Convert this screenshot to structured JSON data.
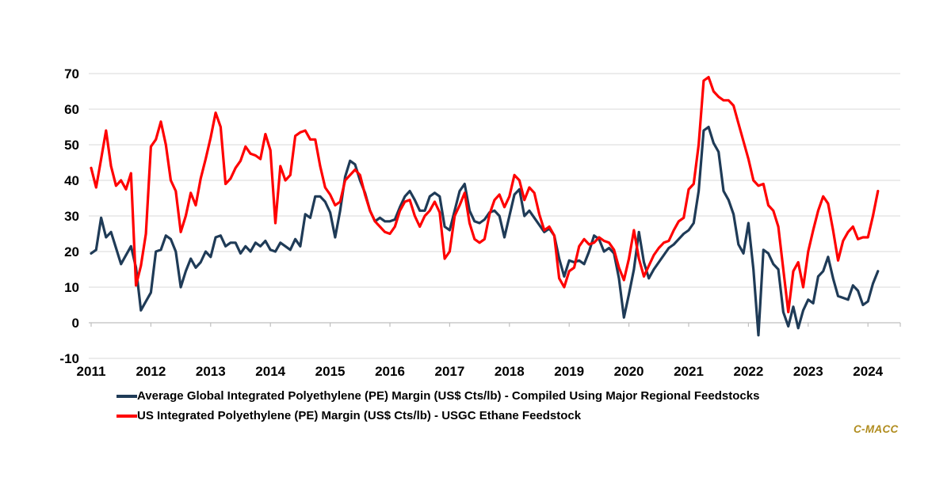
{
  "figure": {
    "background": "#FFFFFF",
    "brand": "C-MACC",
    "brand_color": "#B08C1E"
  },
  "chart_data": {
    "type": "line",
    "title": "",
    "xlabel": "",
    "ylabel": "",
    "x_start": "2011-01",
    "x_interval": "month",
    "xticks": [
      2011,
      2012,
      2013,
      2014,
      2015,
      2016,
      2017,
      2018,
      2019,
      2020,
      2021,
      2022,
      2023,
      2024
    ],
    "ylim": [
      -10,
      70
    ],
    "yticks": [
      -10,
      0,
      10,
      20,
      30,
      40,
      50,
      60,
      70
    ],
    "grid": "horizontal",
    "grid_color": "#D9D9D9",
    "axis_color": "#BFBFBF",
    "legend_position": "bottom-left",
    "series": [
      {
        "name": "Average Global Integrated Polyethylene (PE) Margin (US$ Cts/lb) - Compiled Using Major Regional Feedstocks",
        "color": "#1F3B57",
        "values": [
          19.5,
          20.5,
          29.5,
          24,
          25.5,
          21,
          16.5,
          19,
          21.5,
          15.5,
          3.5,
          6,
          8.5,
          20,
          20.5,
          24.5,
          23.5,
          20,
          10,
          14.5,
          18,
          15.5,
          17,
          20,
          18.5,
          24,
          24.5,
          21.5,
          22.5,
          22.5,
          19.5,
          21.5,
          20,
          22.5,
          21.5,
          23,
          20.5,
          20,
          22.5,
          21.5,
          20.5,
          23.5,
          21.5,
          30.5,
          29.5,
          35.5,
          35.5,
          34,
          31,
          24,
          31.5,
          41,
          45.5,
          44.5,
          40,
          36.5,
          31.5,
          28.5,
          29.5,
          28.5,
          28.5,
          29,
          32.5,
          35.5,
          37,
          34.5,
          31.5,
          31.5,
          35.5,
          36.5,
          35.5,
          27,
          26,
          31.5,
          37,
          39,
          31.5,
          28.5,
          28,
          29,
          31,
          31.5,
          30,
          24,
          30,
          36,
          37.5,
          30,
          31.5,
          29.5,
          27.5,
          25.5,
          26.5,
          24.5,
          18,
          13,
          17.5,
          17,
          17.5,
          16.5,
          20,
          24.5,
          23.5,
          20,
          21,
          19.5,
          12.5,
          1.5,
          8,
          15,
          25.5,
          17,
          12.5,
          15,
          17,
          19,
          21,
          22,
          23.5,
          25,
          26,
          28,
          37,
          54,
          55,
          50.5,
          48,
          37,
          34.5,
          30.5,
          22,
          19.5,
          28,
          15,
          -3.5,
          20.5,
          19.5,
          16.5,
          15,
          3,
          -1,
          4.5,
          -1.5,
          3.5,
          6.5,
          5.5,
          13,
          14.5,
          18.5,
          12.5,
          7.5,
          7,
          6.5,
          10.5,
          9,
          5,
          6,
          11,
          14.5
        ]
      },
      {
        "name": "US Integrated Polyethylene (PE) Margin (US$ Cts/lb) - USGC Ethane Feedstock",
        "color": "#FF0000",
        "values": [
          43.5,
          38,
          46,
          54,
          44,
          38.5,
          40,
          37.5,
          42,
          10.5,
          16,
          25,
          49.5,
          51.5,
          56.5,
          50,
          40,
          37,
          25.5,
          30,
          36.5,
          33,
          40.5,
          46,
          52,
          59,
          55,
          39,
          40.5,
          43.5,
          45.5,
          49.5,
          47.5,
          47,
          46,
          53,
          48.5,
          28,
          44,
          40,
          41.5,
          52.5,
          53.5,
          54,
          51.5,
          51.5,
          44,
          38,
          36,
          33,
          34,
          40,
          41.5,
          43,
          41.5,
          36,
          31.5,
          28.5,
          27,
          25.5,
          25,
          27,
          31.5,
          34,
          34.5,
          30,
          27,
          30,
          31.5,
          34,
          31,
          18,
          20,
          30,
          33,
          36.5,
          28,
          23.5,
          22.5,
          23.5,
          30.5,
          34.5,
          36,
          32.5,
          35.5,
          41.5,
          40,
          34.5,
          38,
          36.5,
          30.5,
          26,
          27,
          24.5,
          12.5,
          10,
          14.5,
          15.5,
          21.5,
          23.5,
          22,
          22.5,
          24,
          23,
          22.5,
          20.5,
          15.5,
          12,
          18,
          26,
          18,
          13,
          16,
          19,
          21,
          22.5,
          23,
          26,
          28.5,
          29.5,
          37.5,
          39,
          50,
          68,
          69,
          65,
          63.5,
          62.5,
          62.5,
          61,
          56,
          51,
          46,
          40,
          38.5,
          39,
          33,
          31.5,
          27,
          15,
          3,
          14.5,
          17,
          10,
          20,
          26,
          31.5,
          35.5,
          33.5,
          26,
          17.5,
          23,
          25.5,
          27,
          23.5,
          24,
          24,
          30,
          37
        ]
      }
    ]
  }
}
